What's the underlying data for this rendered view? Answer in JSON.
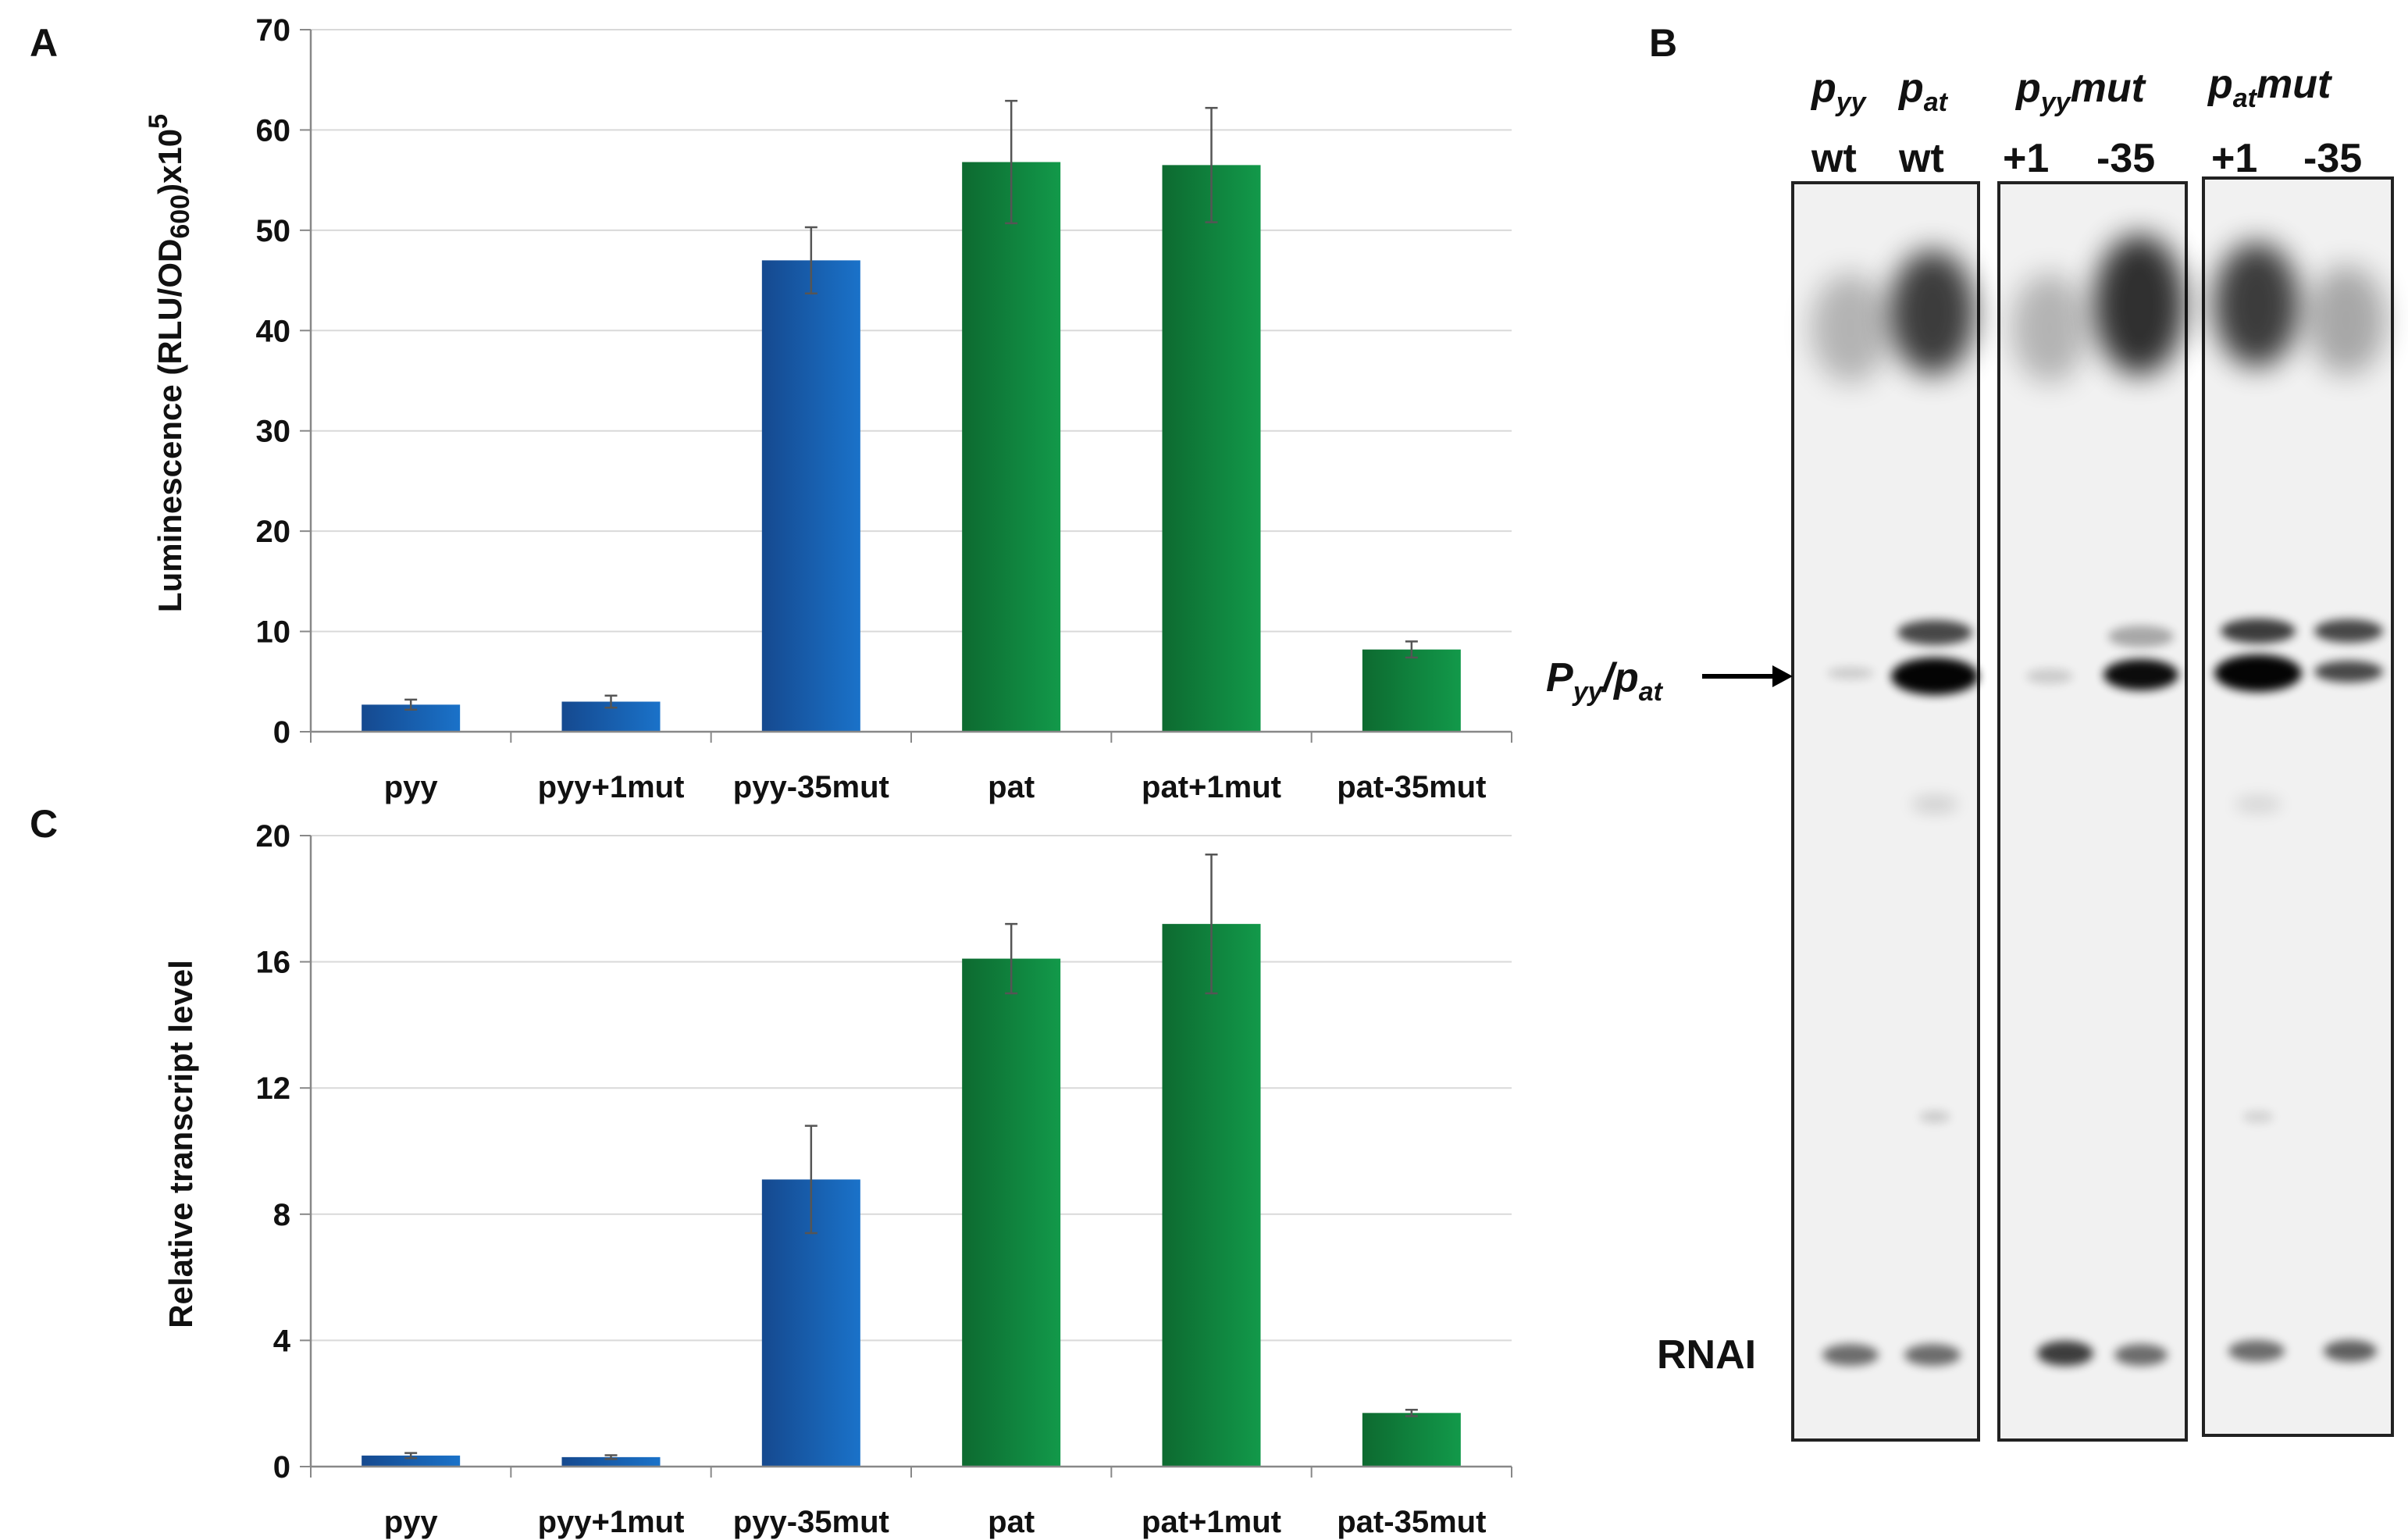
{
  "chart_data": [
    {
      "panel": "A",
      "type": "bar",
      "categories": [
        "pyy",
        "pyy+1mut",
        "pyy-35mut",
        "pat",
        "pat+1mut",
        "pat-35mut"
      ],
      "values": [
        2.7,
        3.0,
        47.0,
        56.8,
        56.5,
        8.2
      ],
      "errors": [
        0.5,
        0.6,
        3.3,
        6.1,
        5.7,
        0.8
      ],
      "series_color": [
        "blue",
        "blue",
        "blue",
        "green",
        "green",
        "green"
      ],
      "ylabel_main": "Luminescence (RLU/OD",
      "ylabel_sub": "600",
      "ylabel_tail": ")x10",
      "ylabel_sup": "5",
      "ylim": [
        0,
        70
      ],
      "yticks": [
        0,
        10,
        20,
        30,
        40,
        50,
        60,
        70
      ],
      "grid": true
    },
    {
      "panel": "C",
      "type": "bar",
      "categories": [
        "pyy",
        "pyy+1mut",
        "pyy-35mut",
        "pat",
        "pat+1mut",
        "pat-35mut"
      ],
      "values": [
        0.35,
        0.3,
        9.1,
        16.1,
        17.2,
        1.7
      ],
      "errors": [
        0.08,
        0.06,
        1.7,
        1.1,
        2.2,
        0.1
      ],
      "series_color": [
        "blue",
        "blue",
        "blue",
        "green",
        "green",
        "green"
      ],
      "ylabel": "Relative transcript level",
      "ylim": [
        0,
        20
      ],
      "yticks": [
        0,
        4,
        8,
        12,
        16,
        20
      ],
      "grid": true
    }
  ],
  "colors": {
    "blue_dark": "#15498f",
    "blue_light": "#1a72c9",
    "green_dark": "#0d6a30",
    "green_light": "#12994a",
    "grid": "#d9d9d9",
    "axis": "#888888",
    "gel_bg": "#f2f2f2"
  },
  "gel": {
    "panel_label": "B",
    "lanes": [
      {
        "top": "p",
        "top_sub": "yy",
        "bottom": "wt"
      },
      {
        "top": "p",
        "top_sub": "at",
        "bottom": "wt"
      },
      {
        "top": "p",
        "top_sub": "yy",
        "top_tail": "mut",
        "bottom_left": "+1",
        "bottom_right": "-35"
      },
      {
        "top": "p",
        "top_sub": "at",
        "top_tail": "mut",
        "bottom_left": "+1",
        "bottom_right": "-35"
      }
    ],
    "arrow_label_main": "P",
    "arrow_label_sub1": "yy",
    "arrow_label_sep": "/p",
    "arrow_label_sub2": "at",
    "rnai_label": "RNAI"
  }
}
